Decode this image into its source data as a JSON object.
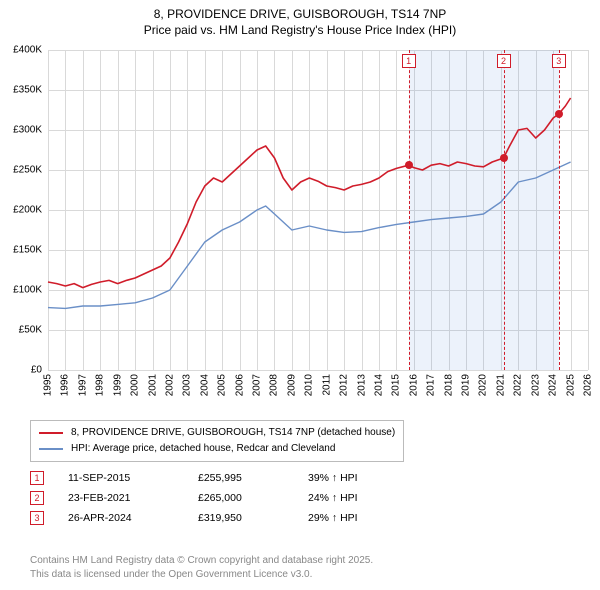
{
  "title_line1": "8, PROVIDENCE DRIVE, GUISBOROUGH, TS14 7NP",
  "title_line2": "Price paid vs. HM Land Registry's House Price Index (HPI)",
  "chart": {
    "type": "line",
    "xlim": [
      1995,
      2026
    ],
    "ylim": [
      0,
      400000
    ],
    "ytick_step": 50000,
    "y_ticks": [
      "£0",
      "£50K",
      "£100K",
      "£150K",
      "£200K",
      "£250K",
      "£300K",
      "£350K",
      "£400K"
    ],
    "x_ticks": [
      1995,
      1996,
      1997,
      1998,
      1999,
      2000,
      2001,
      2002,
      2003,
      2004,
      2005,
      2006,
      2007,
      2008,
      2009,
      2010,
      2011,
      2012,
      2013,
      2014,
      2015,
      2016,
      2017,
      2018,
      2019,
      2020,
      2021,
      2022,
      2023,
      2024,
      2025,
      2026
    ],
    "grid_color": "#d9d9d9",
    "background_color": "#ffffff",
    "shade_color": "rgba(100,150,220,0.12)",
    "series": [
      {
        "name": "price_paid",
        "label": "8, PROVIDENCE DRIVE, GUISBOROUGH, TS14 7NP (detached house)",
        "color": "#d01c2a",
        "stroke_width": 1.6,
        "data": [
          [
            1995,
            110000
          ],
          [
            1995.5,
            108000
          ],
          [
            1996,
            105000
          ],
          [
            1996.5,
            108000
          ],
          [
            1997,
            103000
          ],
          [
            1997.5,
            107000
          ],
          [
            1998,
            110000
          ],
          [
            1998.5,
            112000
          ],
          [
            1999,
            108000
          ],
          [
            1999.5,
            112000
          ],
          [
            2000,
            115000
          ],
          [
            2000.5,
            120000
          ],
          [
            2001,
            125000
          ],
          [
            2001.5,
            130000
          ],
          [
            2002,
            140000
          ],
          [
            2002.5,
            160000
          ],
          [
            2003,
            183000
          ],
          [
            2003.5,
            210000
          ],
          [
            2004,
            230000
          ],
          [
            2004.5,
            240000
          ],
          [
            2005,
            235000
          ],
          [
            2005.5,
            245000
          ],
          [
            2006,
            255000
          ],
          [
            2006.5,
            265000
          ],
          [
            2007,
            275000
          ],
          [
            2007.5,
            280000
          ],
          [
            2008,
            265000
          ],
          [
            2008.5,
            240000
          ],
          [
            2009,
            225000
          ],
          [
            2009.5,
            235000
          ],
          [
            2010,
            240000
          ],
          [
            2010.5,
            236000
          ],
          [
            2011,
            230000
          ],
          [
            2011.5,
            228000
          ],
          [
            2012,
            225000
          ],
          [
            2012.5,
            230000
          ],
          [
            2013,
            232000
          ],
          [
            2013.5,
            235000
          ],
          [
            2014,
            240000
          ],
          [
            2014.5,
            248000
          ],
          [
            2015,
            252000
          ],
          [
            2015.7,
            255995
          ],
          [
            2016,
            253000
          ],
          [
            2016.5,
            250000
          ],
          [
            2017,
            256000
          ],
          [
            2017.5,
            258000
          ],
          [
            2018,
            255000
          ],
          [
            2018.5,
            260000
          ],
          [
            2019,
            258000
          ],
          [
            2019.5,
            255000
          ],
          [
            2020,
            254000
          ],
          [
            2020.5,
            260000
          ],
          [
            2021.15,
            265000
          ],
          [
            2021.5,
            280000
          ],
          [
            2022,
            300000
          ],
          [
            2022.5,
            302000
          ],
          [
            2023,
            290000
          ],
          [
            2023.5,
            300000
          ],
          [
            2024,
            315000
          ],
          [
            2024.32,
            319950
          ],
          [
            2024.7,
            330000
          ],
          [
            2025,
            340000
          ]
        ]
      },
      {
        "name": "hpi",
        "label": "HPI: Average price, detached house, Redcar and Cleveland",
        "color": "#6a8fc7",
        "stroke_width": 1.4,
        "data": [
          [
            1995,
            78000
          ],
          [
            1996,
            77000
          ],
          [
            1997,
            80000
          ],
          [
            1998,
            80000
          ],
          [
            1999,
            82000
          ],
          [
            2000,
            84000
          ],
          [
            2001,
            90000
          ],
          [
            2002,
            100000
          ],
          [
            2003,
            130000
          ],
          [
            2004,
            160000
          ],
          [
            2005,
            175000
          ],
          [
            2006,
            185000
          ],
          [
            2007,
            200000
          ],
          [
            2007.5,
            205000
          ],
          [
            2008,
            195000
          ],
          [
            2009,
            175000
          ],
          [
            2010,
            180000
          ],
          [
            2011,
            175000
          ],
          [
            2012,
            172000
          ],
          [
            2013,
            173000
          ],
          [
            2014,
            178000
          ],
          [
            2015,
            182000
          ],
          [
            2016,
            185000
          ],
          [
            2017,
            188000
          ],
          [
            2018,
            190000
          ],
          [
            2019,
            192000
          ],
          [
            2020,
            195000
          ],
          [
            2021,
            210000
          ],
          [
            2022,
            235000
          ],
          [
            2023,
            240000
          ],
          [
            2024,
            250000
          ],
          [
            2025,
            260000
          ]
        ]
      }
    ],
    "shaded_ranges": [
      [
        2015.7,
        2021.15
      ],
      [
        2021.15,
        2024.32
      ]
    ],
    "markers": [
      {
        "n": "1",
        "x": 2015.7,
        "y": 255995
      },
      {
        "n": "2",
        "x": 2021.15,
        "y": 265000
      },
      {
        "n": "3",
        "x": 2024.32,
        "y": 319950
      }
    ]
  },
  "legend": {
    "s1_label": "8, PROVIDENCE DRIVE, GUISBOROUGH, TS14 7NP (detached house)",
    "s2_label": "HPI: Average price, detached house, Redcar and Cleveland"
  },
  "transactions": [
    {
      "n": "1",
      "date": "11-SEP-2015",
      "price": "£255,995",
      "delta": "39% ↑ HPI"
    },
    {
      "n": "2",
      "date": "23-FEB-2021",
      "price": "£265,000",
      "delta": "24% ↑ HPI"
    },
    {
      "n": "3",
      "date": "26-APR-2024",
      "price": "£319,950",
      "delta": "29% ↑ HPI"
    }
  ],
  "attribution_line1": "Contains HM Land Registry data © Crown copyright and database right 2025.",
  "attribution_line2": "This data is licensed under the Open Government Licence v3.0."
}
